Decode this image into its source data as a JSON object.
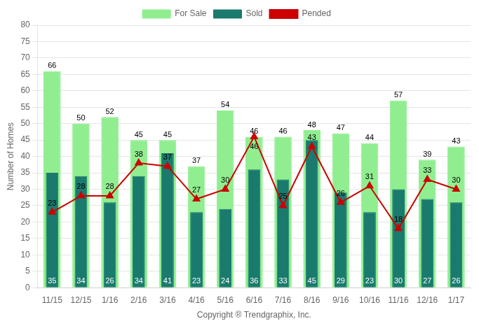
{
  "chart_data": {
    "type": "bar",
    "categories": [
      "11/15",
      "12/15",
      "1/16",
      "2/16",
      "3/16",
      "4/16",
      "5/16",
      "6/16",
      "7/16",
      "8/16",
      "9/16",
      "10/16",
      "11/16",
      "12/16",
      "1/17"
    ],
    "series": [
      {
        "name": "For Sale",
        "type": "bar",
        "color": "#90EE90",
        "values": [
          66,
          50,
          52,
          45,
          45,
          37,
          54,
          46,
          46,
          48,
          47,
          44,
          57,
          39,
          43
        ]
      },
      {
        "name": "Sold",
        "type": "bar",
        "color": "#1A7A6E",
        "values": [
          35,
          34,
          26,
          34,
          41,
          23,
          24,
          36,
          33,
          45,
          29,
          23,
          30,
          27,
          26
        ]
      },
      {
        "name": "Pended",
        "type": "line",
        "color": "#CC0000",
        "marker": "triangle",
        "values": [
          23,
          28,
          28,
          38,
          37,
          27,
          30,
          46,
          25,
          43,
          26,
          31,
          18,
          33,
          30
        ]
      }
    ],
    "xlabel": "Copyright ® Trendgraphix, Inc.",
    "ylabel": "Number of Homes",
    "ylim": [
      0,
      80
    ],
    "yticks": [
      0,
      5,
      10,
      15,
      20,
      25,
      30,
      35,
      40,
      45,
      50,
      55,
      60,
      65,
      70,
      75,
      80
    ],
    "grid": true,
    "legend": "top",
    "data_labels": true
  }
}
